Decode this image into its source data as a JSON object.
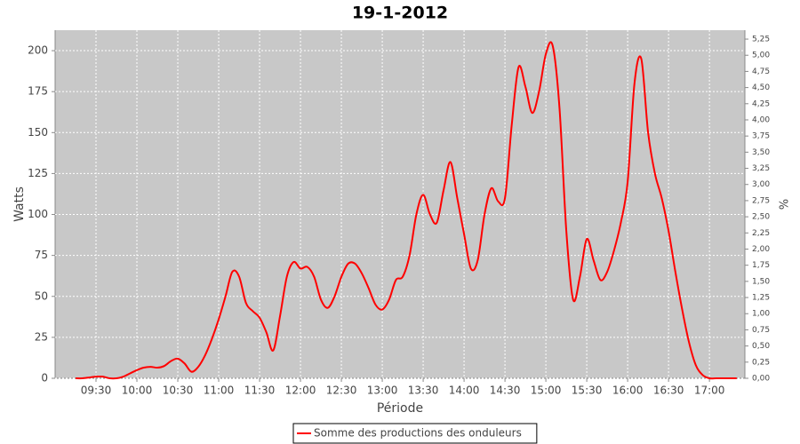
{
  "chart_data": {
    "type": "line",
    "title": "19-1-2012",
    "x_label": "Période",
    "y_label": "Watts",
    "y2_label": "%",
    "x": [
      "09:15",
      "09:20",
      "09:25",
      "09:30",
      "09:35",
      "09:40",
      "09:45",
      "09:50",
      "09:55",
      "10:00",
      "10:05",
      "10:10",
      "10:15",
      "10:20",
      "10:25",
      "10:30",
      "10:35",
      "10:40",
      "10:45",
      "10:50",
      "10:55",
      "11:00",
      "11:05",
      "11:10",
      "11:15",
      "11:20",
      "11:25",
      "11:30",
      "11:35",
      "11:40",
      "11:45",
      "11:50",
      "11:55",
      "12:00",
      "12:05",
      "12:10",
      "12:15",
      "12:20",
      "12:25",
      "12:30",
      "12:35",
      "12:40",
      "12:45",
      "12:50",
      "12:55",
      "13:00",
      "13:05",
      "13:10",
      "13:15",
      "13:20",
      "13:25",
      "13:30",
      "13:35",
      "13:40",
      "13:45",
      "13:50",
      "13:55",
      "14:00",
      "14:05",
      "14:10",
      "14:15",
      "14:20",
      "14:25",
      "14:30",
      "14:35",
      "14:40",
      "14:45",
      "14:50",
      "14:55",
      "15:00",
      "15:05",
      "15:10",
      "15:15",
      "15:20",
      "15:25",
      "15:30",
      "15:35",
      "15:40",
      "15:45",
      "15:50",
      "15:55",
      "16:00",
      "16:05",
      "16:10",
      "16:15",
      "16:20",
      "16:25",
      "16:30",
      "16:35",
      "16:40",
      "16:45",
      "16:50",
      "16:55",
      "17:00",
      "17:05",
      "17:10",
      "17:15",
      "17:20"
    ],
    "series": [
      {
        "name": "Somme des productions des onduleurs",
        "color": "#ff0000",
        "values": [
          0,
          0,
          0.5,
          1,
          1,
          0,
          0,
          1,
          3,
          5,
          6.5,
          7,
          6.5,
          7.5,
          10.5,
          12,
          9,
          4,
          7,
          14,
          24,
          36,
          50,
          65,
          62,
          46,
          41,
          37,
          28,
          17,
          38,
          62,
          71,
          67,
          68,
          62,
          48,
          43,
          50,
          62,
          70,
          70,
          64,
          55,
          45,
          42,
          48,
          60,
          62,
          75,
          100,
          112,
          100,
          95,
          115,
          132,
          110,
          88,
          67,
          72,
          100,
          116,
          108,
          110,
          155,
          190,
          178,
          162,
          175,
          198,
          203,
          165,
          90,
          48,
          62,
          85,
          72,
          60,
          65,
          78,
          95,
          120,
          180,
          195,
          150,
          125,
          110,
          90,
          65,
          42,
          22,
          8,
          2,
          0,
          0,
          0,
          0,
          0
        ]
      }
    ],
    "xlim": [
      "09:00",
      "17:26"
    ],
    "xticks": [
      "09:30",
      "10:00",
      "10:30",
      "11:00",
      "11:30",
      "12:00",
      "12:30",
      "13:00",
      "13:30",
      "14:00",
      "14:30",
      "15:00",
      "15:30",
      "16:00",
      "16:30",
      "17:00"
    ],
    "ylim": [
      0,
      212.5
    ],
    "yticks": [
      0,
      25,
      50,
      75,
      100,
      125,
      150,
      175,
      200
    ],
    "y2lim": [
      0,
      5.388
    ],
    "y2ticks": [
      {
        "value": 0,
        "label": "0,00"
      },
      {
        "value": 0.25,
        "label": "0,25"
      },
      {
        "value": 0.5,
        "label": "0,50"
      },
      {
        "value": 0.75,
        "label": "0,75"
      },
      {
        "value": 1,
        "label": "1,00"
      },
      {
        "value": 1.25,
        "label": "1,25"
      },
      {
        "value": 1.5,
        "label": "1,50"
      },
      {
        "value": 1.75,
        "label": "1,75"
      },
      {
        "value": 2,
        "label": "2,00"
      },
      {
        "value": 2.25,
        "label": "2,25"
      },
      {
        "value": 2.5,
        "label": "2,50"
      },
      {
        "value": 2.75,
        "label": "2,75"
      },
      {
        "value": 3,
        "label": "3,00"
      },
      {
        "value": 3.25,
        "label": "3,25"
      },
      {
        "value": 3.5,
        "label": "3,50"
      },
      {
        "value": 3.75,
        "label": "3,75"
      },
      {
        "value": 4,
        "label": "4,00"
      },
      {
        "value": 4.25,
        "label": "4,25"
      },
      {
        "value": 4.5,
        "label": "4,50"
      },
      {
        "value": 4.75,
        "label": "4,75"
      },
      {
        "value": 5,
        "label": "5,00"
      },
      {
        "value": 5.25,
        "label": "5,25"
      }
    ],
    "grid": true,
    "legend": "bottom"
  }
}
